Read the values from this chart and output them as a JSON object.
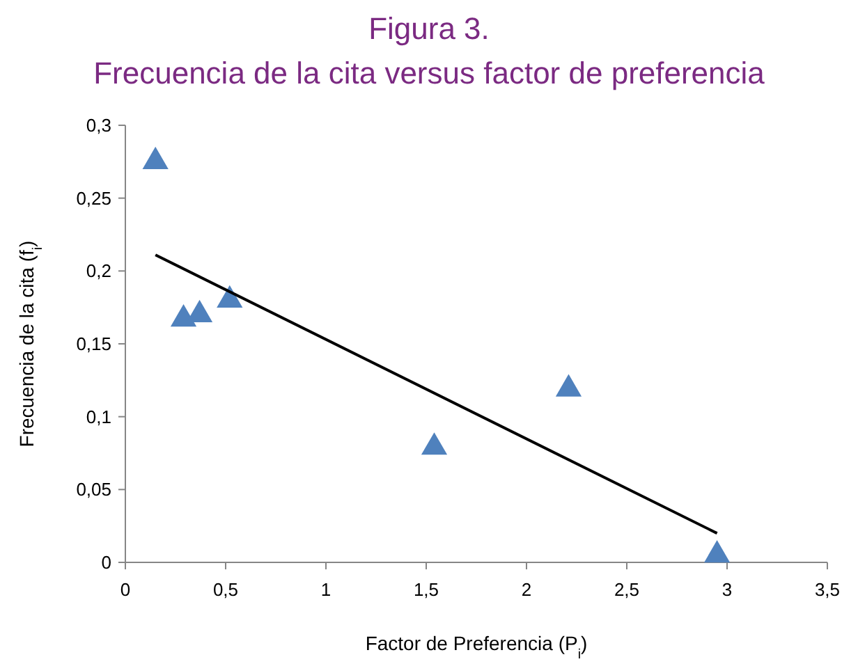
{
  "chart_data": {
    "type": "scatter",
    "title": "Figura 3.",
    "subtitle": "Frecuencia de la cita versus factor de preferencia",
    "xlabel": "Factor de Preferencia (P$_{i}$)",
    "ylabel": "Frecuencia de la cita (f$_{i}$)",
    "xlim": [
      0,
      3.5
    ],
    "ylim": [
      0,
      0.3
    ],
    "xticks": [
      0,
      {
        "value": 0.5,
        "label": "0,5"
      },
      1,
      {
        "value": 1.5,
        "label": "1,5"
      },
      2,
      {
        "value": 2.5,
        "label": "2,5"
      },
      3,
      {
        "value": 3.5,
        "label": "3,5"
      }
    ],
    "yticks": [
      0,
      {
        "value": 0.05,
        "label": "0,05"
      },
      {
        "value": 0.1,
        "label": "0,1"
      },
      {
        "value": 0.15,
        "label": "0,15"
      },
      {
        "value": 0.2,
        "label": "0,2"
      },
      {
        "value": 0.25,
        "label": "0,25"
      },
      {
        "value": 0.3,
        "label": "0,3"
      }
    ],
    "grid": false,
    "marker": "triangle",
    "series": [
      {
        "color": "#4f81bd",
        "x": [
          0.15,
          0.29,
          0.37,
          0.52,
          1.54,
          2.21,
          2.95
        ],
        "values": [
          0.275,
          0.167,
          0.17,
          0.18,
          0.079,
          0.119,
          0.005
        ]
      },
      {
        "type": "line",
        "color": "#000000",
        "line_style": "solid",
        "marker": "none",
        "x": [
          0.15,
          2.95
        ],
        "values": [
          0.211,
          0.02
        ]
      }
    ]
  }
}
